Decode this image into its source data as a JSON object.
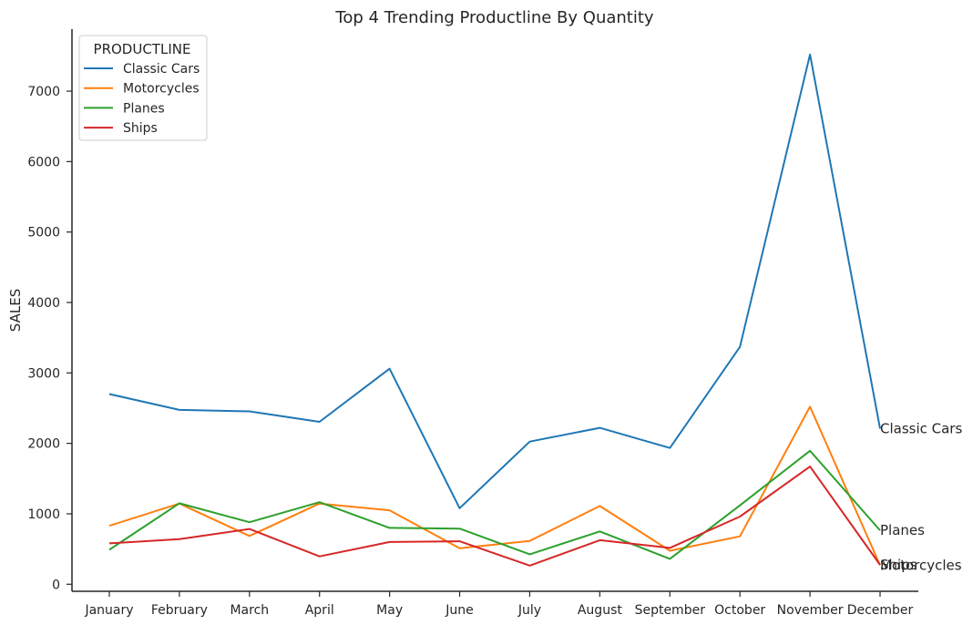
{
  "chart_data": {
    "type": "line",
    "title": "Top 4 Trending Productline By Quantity",
    "xlabel": "",
    "ylabel": "SALES",
    "categories": [
      "January",
      "February",
      "March",
      "April",
      "May",
      "June",
      "July",
      "August",
      "September",
      "October",
      "November",
      "December"
    ],
    "yticks": [
      "0",
      "1000",
      "2000",
      "3000",
      "4000",
      "5000",
      "6000",
      "7000"
    ],
    "ylim": [
      -100,
      7880
    ],
    "grid": false,
    "legend": {
      "title": "PRODUCTLINE",
      "placement": "top-left"
    },
    "series": [
      {
        "name": "Classic Cars",
        "color": "#1f77b4",
        "values": [
          2700,
          2475,
          2455,
          2305,
          3060,
          1080,
          2025,
          2220,
          1935,
          3370,
          7520,
          2210
        ],
        "end_label": "Classic Cars"
      },
      {
        "name": "Motorcycles",
        "color": "#ff7f0e",
        "values": [
          830,
          1145,
          685,
          1145,
          1050,
          510,
          615,
          1110,
          475,
          680,
          2520,
          270
        ],
        "end_label": "Motorcycles"
      },
      {
        "name": "Planes",
        "color": "#2ca02c",
        "values": [
          490,
          1150,
          880,
          1165,
          800,
          790,
          425,
          750,
          360,
          1120,
          1895,
          765
        ],
        "end_label": "Planes"
      },
      {
        "name": "Ships",
        "color": "#d62728",
        "values": [
          580,
          640,
          785,
          395,
          600,
          610,
          265,
          625,
          515,
          960,
          1670,
          275
        ],
        "end_label": "Ships"
      }
    ]
  }
}
